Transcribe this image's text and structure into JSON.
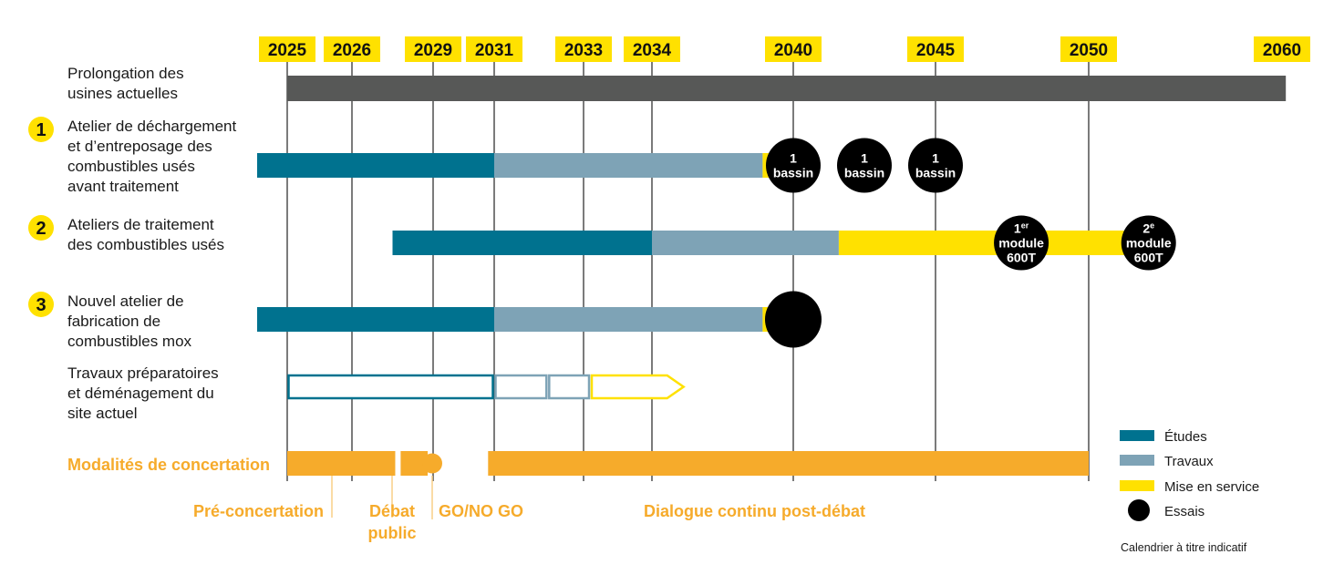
{
  "chart_data": {
    "type": "gantt",
    "title": "",
    "x_axis": {
      "type": "year",
      "ticks": [
        2025,
        2026,
        2029,
        2031,
        2033,
        2034,
        2040,
        2045,
        2050,
        2060
      ],
      "tick_labels": [
        "2025",
        "2026",
        "2029",
        "2031",
        "2033",
        "2034",
        "2040",
        "2045",
        "2050",
        "2060"
      ],
      "gridlines": [
        2025,
        2026,
        2029,
        2031,
        2033,
        2034,
        2040,
        2045,
        2050
      ],
      "range": [
        2024,
        2060
      ]
    },
    "colors": {
      "etudes": "#00728f",
      "travaux": "#7ea3b6",
      "mise_en_service": "#ffe100",
      "essais": "#000000",
      "existing": "#575857",
      "concertation": "#f6ab2b",
      "year_badge": "#ffe100",
      "number_badge": "#ffe100"
    },
    "rows": [
      {
        "id": "prolongation",
        "number": "",
        "label_lines": [
          "Prolongation des",
          "usines actuelles"
        ],
        "segments": [
          {
            "phase": "existing",
            "start": 2025,
            "end": 2060.2
          }
        ],
        "milestones": []
      },
      {
        "id": "atelier-dechargement",
        "number": "1",
        "label_lines": [
          "Atelier de déchargement",
          "et d’entreposage des",
          "combustibles usés",
          "avant traitement"
        ],
        "segments": [
          {
            "phase": "etudes",
            "start": 2024.0,
            "end": 2031
          },
          {
            "phase": "travaux",
            "start": 2031,
            "end": 2038.7
          },
          {
            "phase": "mise_en_service",
            "start": 2038.7,
            "end": 2040
          }
        ],
        "milestones": [
          {
            "type": "essais",
            "year": 2040,
            "lines": [
              "1",
              "bassin"
            ]
          },
          {
            "type": "essais",
            "year": 2042.5,
            "lines": [
              "1",
              "bassin"
            ]
          },
          {
            "type": "essais",
            "year": 2045,
            "lines": [
              "1",
              "bassin"
            ]
          }
        ]
      },
      {
        "id": "ateliers-traitement",
        "number": "2",
        "label_lines": [
          "Ateliers de traitement",
          "des combustibles usés"
        ],
        "segments": [
          {
            "phase": "etudes",
            "start": 2027.5,
            "end": 2034
          },
          {
            "phase": "travaux",
            "start": 2034,
            "end": 2041.6
          },
          {
            "phase": "mise_en_service",
            "start": 2041.6,
            "end": 2053.2
          }
        ],
        "milestones": [
          {
            "type": "essais",
            "year": 2047.8,
            "lines": [
              "1",
              "module",
              "600T"
            ],
            "sup": "er"
          },
          {
            "type": "essais",
            "year": 2053.1,
            "lines": [
              "2",
              "module",
              "600T"
            ],
            "sup": "e"
          }
        ]
      },
      {
        "id": "atelier-mox",
        "number": "3",
        "label_lines": [
          "Nouvel atelier de",
          "fabrication de",
          "combustibles mox"
        ],
        "segments": [
          {
            "phase": "etudes",
            "start": 2024.0,
            "end": 2031
          },
          {
            "phase": "travaux",
            "start": 2031,
            "end": 2038.7
          },
          {
            "phase": "mise_en_service",
            "start": 2038.7,
            "end": 2040
          }
        ],
        "milestones": [
          {
            "type": "essais",
            "year": 2040,
            "lines": [],
            "large": true
          }
        ]
      },
      {
        "id": "travaux-preparatoires",
        "number": "",
        "label_lines": [
          "Travaux préparatoires",
          "et déménagement du",
          "site actuel"
        ],
        "outline_segments": [
          {
            "phase": "etudes",
            "start": 2025,
            "end": 2031
          },
          {
            "phase": "travaux",
            "start": 2031,
            "end": 2032.2
          },
          {
            "phase": "travaux",
            "start": 2032.2,
            "end": 2033.1
          },
          {
            "phase": "mise_en_service",
            "start": 2033.1,
            "end": 2035.4,
            "arrow": true
          }
        ]
      }
    ],
    "concertation": {
      "label": "Modalités de concertation",
      "segments": [
        {
          "start": 2025,
          "end": 2027.6,
          "annotation_lines": [
            "Pré-concertation"
          ]
        },
        {
          "start": 2027.8,
          "end": 2028.8,
          "annotation_lines": [
            "Débat",
            "public"
          ]
        },
        {
          "start": 2030.8,
          "end": 2050,
          "annotation_lines": [
            "Dialogue continu post-débat"
          ]
        }
      ],
      "milestone": {
        "year": 2029,
        "annotation": "GO/NO GO"
      }
    },
    "legend": {
      "placement": "bottom-right",
      "items": [
        {
          "key": "etudes",
          "label": "Études",
          "shape": "rect"
        },
        {
          "key": "travaux",
          "label": "Travaux",
          "shape": "rect"
        },
        {
          "key": "mise_en_service",
          "label": "Mise en service",
          "shape": "rect"
        },
        {
          "key": "essais",
          "label": "Essais",
          "shape": "circle"
        }
      ]
    },
    "note": "Calendrier à titre indicatif"
  }
}
